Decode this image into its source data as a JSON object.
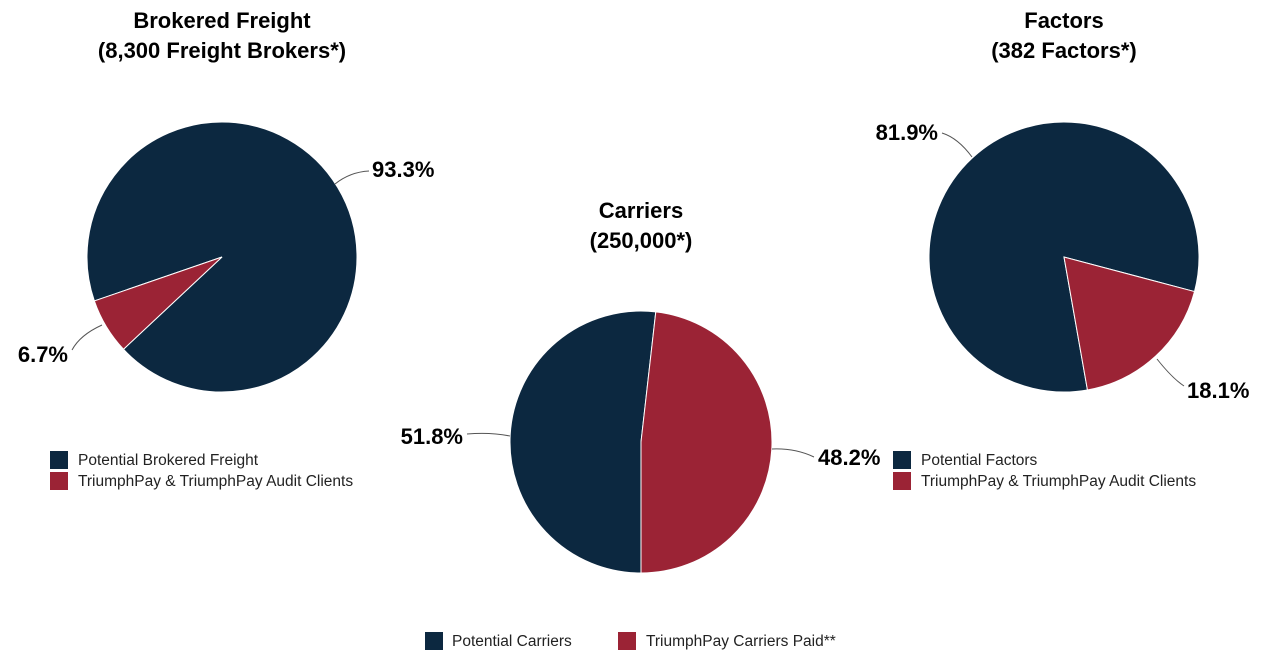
{
  "chart_data": [
    {
      "type": "pie",
      "title": "Brokered Freight",
      "subtitle": "(8,300 Freight Brokers*)",
      "categories": [
        "Potential Brokered Freight",
        "TriumphPay & TriumphPay Audit Clients"
      ],
      "values": [
        93.3,
        6.7
      ],
      "value_labels": [
        "93.3%",
        "6.7%"
      ],
      "colors": [
        "#0c2840",
        "#9b2335"
      ]
    },
    {
      "type": "pie",
      "title": "Carriers",
      "subtitle": "(250,000*)",
      "categories": [
        "Potential Carriers",
        "TriumphPay Carriers Paid**"
      ],
      "values": [
        51.8,
        48.2
      ],
      "value_labels": [
        "51.8%",
        "48.2%"
      ],
      "colors": [
        "#0c2840",
        "#9b2335"
      ]
    },
    {
      "type": "pie",
      "title": "Factors",
      "subtitle": "(382 Factors*)",
      "categories": [
        "Potential Factors",
        "TriumphPay & TriumphPay Audit Clients"
      ],
      "values": [
        81.9,
        18.1
      ],
      "value_labels": [
        "81.9%",
        "18.1%"
      ],
      "colors": [
        "#0c2840",
        "#9b2335"
      ]
    }
  ]
}
